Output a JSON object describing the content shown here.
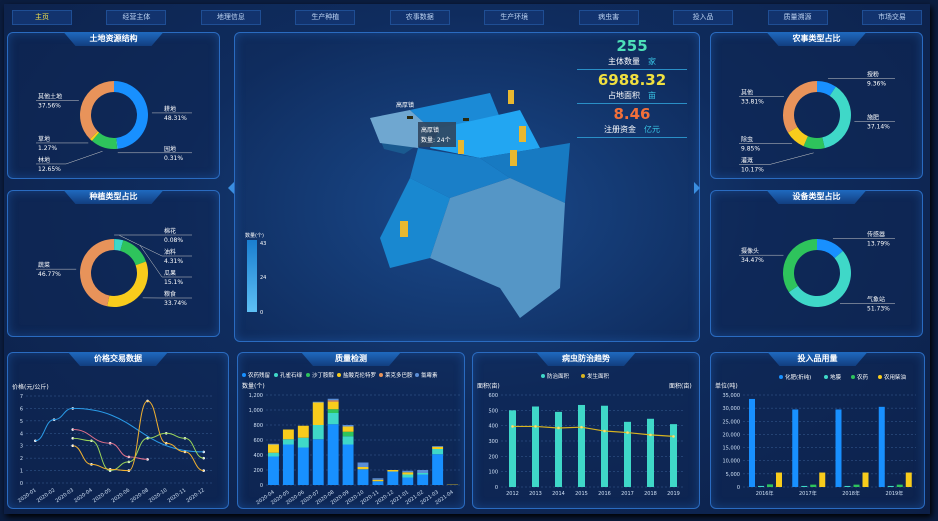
{
  "nav": [
    {
      "label": "主页",
      "active": true
    },
    {
      "label": "经营主体"
    },
    {
      "label": "地理信息"
    },
    {
      "label": "生产种植"
    },
    {
      "label": "农事数据"
    },
    {
      "label": "生产环境"
    },
    {
      "label": "病虫害"
    },
    {
      "label": "投入品"
    },
    {
      "label": "质量溯源"
    },
    {
      "label": "市场交易"
    }
  ],
  "colors": {
    "blue": "#1890ff",
    "teal": "#3fd8c8",
    "green": "#2ec45c",
    "yellow": "#f8cc1c",
    "orange": "#e8935a",
    "steel": "#5b8ed6",
    "pink": "#e0708a",
    "lightgreen": "#9ad45a"
  },
  "land": {
    "title": "土地资源结构",
    "slices": [
      {
        "name": "耕地",
        "pct": "48.31%",
        "v": 48.31,
        "c": "#1890ff"
      },
      {
        "name": "园地",
        "pct": "0.31%",
        "v": 0.31,
        "c": "#3fd8c8"
      },
      {
        "name": "林地",
        "pct": "12.65%",
        "v": 12.65,
        "c": "#2ec45c"
      },
      {
        "name": "草地",
        "pct": "1.27%",
        "v": 1.27,
        "c": "#f8cc1c"
      },
      {
        "name": "其他土地",
        "pct": "37.56%",
        "v": 37.56,
        "c": "#e8935a"
      }
    ]
  },
  "planting": {
    "title": "种植类型占比",
    "slices": [
      {
        "name": "棉花",
        "pct": "0.08%",
        "v": 0.08,
        "c": "#1890ff"
      },
      {
        "name": "油料",
        "pct": "4.31%",
        "v": 4.31,
        "c": "#3fd8c8"
      },
      {
        "name": "瓜果",
        "pct": "15.1%",
        "v": 15.1,
        "c": "#2ec45c"
      },
      {
        "name": "粮食",
        "pct": "33.74%",
        "v": 33.74,
        "c": "#f8cc1c"
      },
      {
        "name": "蔬菜",
        "pct": "46.77%",
        "v": 46.77,
        "c": "#e8935a"
      }
    ]
  },
  "farming": {
    "title": "农事类型占比",
    "slices": [
      {
        "name": "授粉",
        "pct": "9.36%",
        "v": 9.36,
        "c": "#1890ff"
      },
      {
        "name": "施肥",
        "pct": "37.14%",
        "v": 37.14,
        "c": "#3fd8c8"
      },
      {
        "name": "灌溉",
        "pct": "10.17%",
        "v": 10.17,
        "c": "#2ec45c"
      },
      {
        "name": "除虫",
        "pct": "9.85%",
        "v": 9.85,
        "c": "#f8cc1c"
      },
      {
        "name": "其他",
        "pct": "33.81%",
        "v": 33.81,
        "c": "#e8935a"
      }
    ]
  },
  "equipment": {
    "title": "设备类型占比",
    "slices": [
      {
        "name": "传感器",
        "pct": "13.79%",
        "v": 13.79,
        "c": "#1890ff"
      },
      {
        "name": "气象站",
        "pct": "51.73%",
        "v": 51.73,
        "c": "#3fd8c8"
      },
      {
        "name": "摄像头",
        "pct": "34.47%",
        "v": 34.47,
        "c": "#2ec45c"
      }
    ]
  },
  "stats": [
    {
      "value": "255",
      "label": "主体数量",
      "unit": "家",
      "color": "#4de0b8"
    },
    {
      "value": "6988.32",
      "label": "占地面积",
      "unit": "亩",
      "color": "#f0e040"
    },
    {
      "value": "8.46",
      "label": "注册资金",
      "unit": "亿元",
      "color": "#f2703a"
    }
  ],
  "map": {
    "place_label": "高厚镇",
    "tooltip_name": "高厚镇",
    "tooltip_value": "数量: 24个",
    "legend_title": "数量(个)",
    "legend_max": "43",
    "legend_mid": "24",
    "legend_min": "0"
  },
  "chart_data": [
    {
      "type": "line",
      "title": "价格交易数据",
      "ylabel": "价格(元/公斤)",
      "ylim": [
        0,
        7
      ],
      "categories": [
        "2020-01",
        "2020-02",
        "2020-03",
        "2020-04",
        "2020-05",
        "2020-06",
        "2020-08",
        "2020-10",
        "2020-11",
        "2020-12"
      ],
      "series": [
        {
          "c": "#2a9be8",
          "values": [
            3.4,
            5.1,
            6.0,
            null,
            null,
            null,
            null,
            null,
            null,
            2.5
          ]
        },
        {
          "c": "#e0708a",
          "values": [
            null,
            null,
            4.3,
            null,
            3.2,
            2.1,
            1.9,
            null,
            null,
            null
          ]
        },
        {
          "c": "#9ad45a",
          "values": [
            null,
            null,
            3.6,
            3.4,
            1.0,
            1.7,
            3.6,
            4.0,
            3.6,
            2.0
          ]
        },
        {
          "c": "#f0b030",
          "values": [
            null,
            null,
            3.0,
            1.5,
            1.1,
            1.0,
            6.6,
            3.2,
            2.5,
            1.0
          ]
        }
      ]
    },
    {
      "type": "bar",
      "stacked": true,
      "title": "质量检测",
      "ylabel": "数量(个)",
      "ylim": [
        0,
        1200
      ],
      "yticks": [
        "0",
        "200",
        "400",
        "600",
        "800",
        "1,000",
        "1,200"
      ],
      "categories": [
        "2020-04",
        "2020-05",
        "2020-06",
        "2020-07",
        "2020-08",
        "2020-09",
        "2020-10",
        "2020-11",
        "2020-12",
        "2021-01",
        "2021-02",
        "2021-03",
        "2021-04"
      ],
      "series": [
        {
          "name": "农药残留",
          "c": "#1890ff",
          "values": [
            380,
            540,
            500,
            610,
            810,
            540,
            210,
            50,
            180,
            100,
            140,
            410,
            0
          ]
        },
        {
          "name": "孔雀石绿",
          "c": "#3fd8c8",
          "values": [
            50,
            70,
            130,
            190,
            150,
            110,
            0,
            0,
            0,
            40,
            20,
            70,
            0
          ]
        },
        {
          "name": "沙丁胺醇",
          "c": "#2ec45c",
          "values": [
            0,
            0,
            0,
            0,
            50,
            60,
            0,
            0,
            0,
            0,
            0,
            0,
            0
          ]
        },
        {
          "name": "盐酸克伦特罗",
          "c": "#f8cc1c",
          "values": [
            110,
            130,
            160,
            300,
            100,
            70,
            30,
            20,
            20,
            30,
            0,
            30,
            5
          ]
        },
        {
          "name": "莱克多巴胺",
          "c": "#e8935a",
          "values": [
            0,
            0,
            0,
            0,
            20,
            0,
            0,
            0,
            0,
            0,
            0,
            0,
            0
          ]
        },
        {
          "name": "氯霉素",
          "c": "#5b8ed6",
          "values": [
            10,
            0,
            0,
            10,
            20,
            20,
            60,
            20,
            0,
            20,
            40,
            10,
            0
          ]
        }
      ]
    },
    {
      "type": "bar",
      "title": "病虫防治趋势",
      "ylabel": "面积(亩)",
      "ylabel_right": "面积(亩)",
      "ylim": [
        0,
        600
      ],
      "yticks": [
        "0",
        "100",
        "200",
        "300",
        "400",
        "500",
        "600"
      ],
      "categories": [
        "2012",
        "2013",
        "2014",
        "2015",
        "2016",
        "2017",
        "2018",
        "2019"
      ],
      "series": [
        {
          "name": "防治面积",
          "c": "#3fd8c8",
          "values": [
            500,
            525,
            490,
            535,
            530,
            425,
            445,
            410
          ]
        },
        {
          "name": "发生面积",
          "c": "#d8b420",
          "line": true,
          "values": [
            395,
            395,
            385,
            390,
            365,
            355,
            340,
            330
          ]
        }
      ]
    },
    {
      "type": "bar",
      "title": "投入品用量",
      "ylabel": "单位(吨)",
      "ylim": [
        0,
        35000
      ],
      "yticks": [
        "0",
        "5,000",
        "10,000",
        "15,000",
        "20,000",
        "25,000",
        "30,000",
        "35,000"
      ],
      "categories": [
        "2016年",
        "2017年",
        "2018年",
        "2019年"
      ],
      "series": [
        {
          "name": "化肥(折纯)",
          "c": "#1890ff",
          "values": [
            33500,
            29500,
            29500,
            30500
          ]
        },
        {
          "name": "地膜",
          "c": "#3fd8c8",
          "values": [
            400,
            400,
            400,
            400
          ]
        },
        {
          "name": "农药",
          "c": "#2ec45c",
          "values": [
            1000,
            900,
            900,
            900
          ]
        },
        {
          "name": "农用柴油",
          "c": "#f8cc1c",
          "values": [
            5500,
            5500,
            5500,
            5500
          ]
        }
      ]
    }
  ]
}
